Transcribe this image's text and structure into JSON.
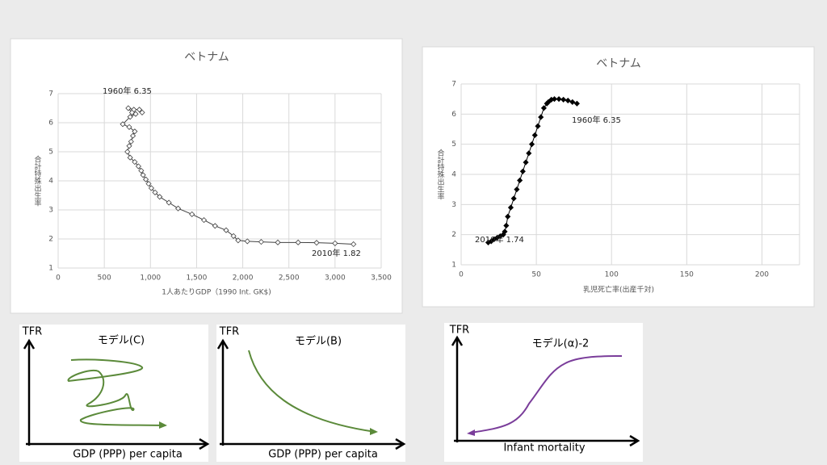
{
  "chart_data": [
    {
      "type": "line",
      "title": "ベトナム",
      "x_label": "1人あたりGDP（1990 Int. GK$)",
      "y_label": "合計特殊出生率",
      "marker": "diamond-open",
      "color": "#404040",
      "grid": true,
      "annotations": [
        "1960年 6.35",
        "2010年 1.82"
      ],
      "xlim": [
        0,
        3500
      ],
      "xticks": [
        0,
        500,
        {
          "value": 1000,
          "label": "1,000"
        },
        {
          "value": 1500,
          "label": "1,500"
        },
        {
          "value": 2000,
          "label": "2,000"
        },
        {
          "value": 2500,
          "label": "2,500"
        },
        {
          "value": 3000,
          "label": "3,000"
        },
        {
          "value": 3500,
          "label": "3,500"
        }
      ],
      "ylim": [
        1,
        7
      ],
      "yticks": [
        1,
        2,
        3,
        4,
        5,
        6,
        7
      ],
      "x": [
        910,
        880,
        820,
        760,
        800,
        840,
        780,
        700,
        770,
        830,
        810,
        790,
        770,
        750,
        780,
        830,
        870,
        900,
        920,
        950,
        980,
        1010,
        1050,
        1100,
        1200,
        1300,
        1450,
        1580,
        1700,
        1820,
        1900,
        1950,
        2050,
        2200,
        2380,
        2600,
        2800,
        3000,
        3200
      ],
      "values": [
        6.35,
        6.45,
        6.45,
        6.5,
        6.35,
        6.3,
        6.2,
        5.95,
        5.85,
        5.7,
        5.55,
        5.35,
        5.2,
        5.0,
        4.8,
        4.65,
        4.5,
        4.35,
        4.2,
        4.05,
        3.9,
        3.75,
        3.6,
        3.45,
        3.25,
        3.05,
        2.85,
        2.65,
        2.45,
        2.3,
        2.1,
        1.95,
        1.92,
        1.9,
        1.88,
        1.88,
        1.87,
        1.85,
        1.82
      ]
    },
    {
      "type": "line",
      "title": "ベトナム",
      "x_label": "乳児死亡率(出産千対)",
      "y_label": "合計特殊出生率",
      "marker": "diamond-filled",
      "color": "#000000",
      "grid": true,
      "annotations": [
        "1960年 6.35",
        "2010年 1.74"
      ],
      "xlim": [
        0,
        225
      ],
      "xticks": [
        0,
        50,
        100,
        150,
        200
      ],
      "ylim": [
        1,
        7
      ],
      "yticks": [
        1,
        2,
        3,
        4,
        5,
        6,
        7
      ],
      "x": [
        77,
        74,
        71,
        68,
        65,
        62,
        60,
        58,
        57,
        55,
        53,
        51,
        49,
        47,
        45,
        43,
        41,
        39,
        37,
        35,
        33,
        31,
        30,
        29,
        28,
        26,
        24,
        22,
        20,
        18
      ],
      "values": [
        6.35,
        6.4,
        6.45,
        6.48,
        6.5,
        6.5,
        6.48,
        6.4,
        6.35,
        6.2,
        5.9,
        5.6,
        5.3,
        5.0,
        4.7,
        4.4,
        4.1,
        3.8,
        3.5,
        3.2,
        2.9,
        2.6,
        2.3,
        2.1,
        2.0,
        1.95,
        1.9,
        1.85,
        1.78,
        1.74
      ]
    }
  ],
  "diagrams": [
    {
      "y_axis": "TFR",
      "title": "モデル(C)",
      "x_axis": "GDP (PPP) per capita"
    },
    {
      "y_axis": "TFR",
      "title": "モデル(B)",
      "x_axis": "GDP (PPP) per capita"
    },
    {
      "y_axis": "TFR",
      "title": "モデル(α)-2",
      "x_axis": "Infant mortality"
    }
  ]
}
